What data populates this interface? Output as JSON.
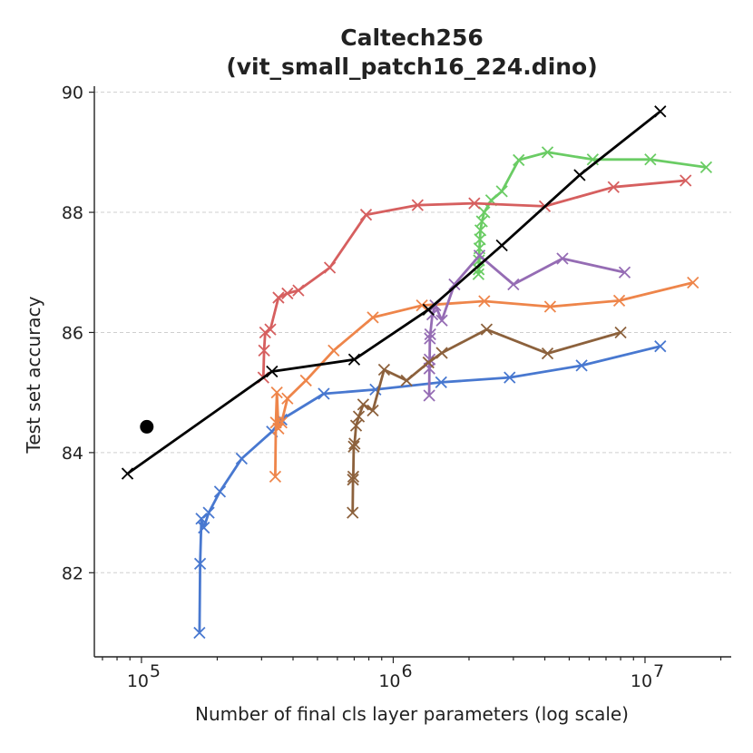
{
  "chart_data": {
    "type": "line",
    "title_lines": [
      "Caltech256",
      "(vit_small_patch16_224.dino)"
    ],
    "xlabel": "Number of final cls layer parameters (log scale)",
    "ylabel": "Test set accuracy",
    "xscale": "log",
    "xlim": [
      65000,
      22000000
    ],
    "ylim": [
      80.6,
      90.1
    ],
    "yticks": [
      82,
      84,
      86,
      88,
      90
    ],
    "ytick_labels": [
      "82",
      "84",
      "86",
      "88",
      "90"
    ],
    "xticks": [
      100000,
      1000000,
      10000000
    ],
    "xtick_labels": [
      {
        "base": "10",
        "exp": "5"
      },
      {
        "base": "10",
        "exp": "6"
      },
      {
        "base": "10",
        "exp": "7"
      }
    ],
    "grid": "y-dashed",
    "series": [
      {
        "name": "blue",
        "color": "#4878d0",
        "points": [
          [
            170000,
            81.0
          ],
          [
            171000,
            82.15
          ],
          [
            173000,
            82.9
          ],
          [
            177000,
            82.75
          ],
          [
            185000,
            83.0
          ],
          [
            205000,
            83.35
          ],
          [
            250000,
            83.9
          ],
          [
            330000,
            84.35
          ],
          [
            360000,
            84.55
          ],
          [
            530000,
            84.98
          ],
          [
            850000,
            85.05
          ],
          [
            1550000,
            85.17
          ],
          [
            2900000,
            85.25
          ],
          [
            5600000,
            85.45
          ],
          [
            11500000,
            85.77
          ]
        ]
      },
      {
        "name": "orange",
        "color": "#ee854a",
        "points": [
          [
            340000,
            83.6
          ],
          [
            342000,
            84.5
          ],
          [
            345000,
            85.0
          ],
          [
            350000,
            84.4
          ],
          [
            360000,
            84.5
          ],
          [
            380000,
            84.9
          ],
          [
            450000,
            85.2
          ],
          [
            580000,
            85.7
          ],
          [
            830000,
            86.25
          ],
          [
            1300000,
            86.45
          ],
          [
            2300000,
            86.52
          ],
          [
            4200000,
            86.43
          ],
          [
            7900000,
            86.53
          ],
          [
            15500000,
            86.83
          ]
        ]
      },
      {
        "name": "green",
        "color": "#6acc64",
        "points": [
          [
            2180000,
            86.97
          ],
          [
            2185000,
            87.05
          ],
          [
            2190000,
            87.2
          ],
          [
            2200000,
            87.4
          ],
          [
            2210000,
            87.55
          ],
          [
            2220000,
            87.7
          ],
          [
            2250000,
            87.85
          ],
          [
            2300000,
            88.0
          ],
          [
            2450000,
            88.2
          ],
          [
            2700000,
            88.35
          ],
          [
            3150000,
            88.87
          ],
          [
            4100000,
            89.0
          ],
          [
            6200000,
            88.88
          ],
          [
            10500000,
            88.88
          ],
          [
            17500000,
            88.75
          ]
        ]
      },
      {
        "name": "red",
        "color": "#d65f5f",
        "points": [
          [
            305000,
            85.25
          ],
          [
            307000,
            85.7
          ],
          [
            310000,
            86.0
          ],
          [
            325000,
            86.05
          ],
          [
            350000,
            86.58
          ],
          [
            380000,
            86.65
          ],
          [
            420000,
            86.7
          ],
          [
            560000,
            87.08
          ],
          [
            780000,
            87.96
          ],
          [
            1250000,
            88.12
          ],
          [
            2100000,
            88.15
          ],
          [
            4000000,
            88.1
          ],
          [
            7500000,
            88.42
          ],
          [
            14500000,
            88.53
          ]
        ]
      },
      {
        "name": "purple",
        "color": "#956cb4",
        "points": [
          [
            1390000,
            84.95
          ],
          [
            1392000,
            85.4
          ],
          [
            1395000,
            85.55
          ],
          [
            1398000,
            85.9
          ],
          [
            1403000,
            85.97
          ],
          [
            1430000,
            86.3
          ],
          [
            1470000,
            86.45
          ],
          [
            1560000,
            86.2
          ],
          [
            1750000,
            86.8
          ],
          [
            2200000,
            87.28
          ],
          [
            3000000,
            86.8
          ],
          [
            4700000,
            87.23
          ],
          [
            8300000,
            87.0
          ]
        ]
      },
      {
        "name": "brown",
        "color": "#8c613c",
        "points": [
          [
            690000,
            83.0
          ],
          [
            692000,
            83.55
          ],
          [
            694000,
            83.6
          ],
          [
            697000,
            84.1
          ],
          [
            702000,
            84.15
          ],
          [
            712000,
            84.45
          ],
          [
            730000,
            84.6
          ],
          [
            760000,
            84.8
          ],
          [
            830000,
            84.7
          ],
          [
            920000,
            85.38
          ],
          [
            1130000,
            85.2
          ],
          [
            1380000,
            85.5
          ],
          [
            1560000,
            85.66
          ],
          [
            2350000,
            86.05
          ],
          [
            4100000,
            85.65
          ],
          [
            8000000,
            86.0
          ]
        ]
      },
      {
        "name": "black",
        "color": "#000000",
        "points": [
          [
            88000,
            83.65
          ],
          [
            330000,
            85.35
          ],
          [
            700000,
            85.55
          ],
          [
            1380000,
            86.38
          ],
          [
            2700000,
            87.45
          ],
          [
            5500000,
            88.62
          ],
          [
            11500000,
            89.68
          ]
        ]
      }
    ],
    "reference_point": {
      "x": 105000,
      "y": 84.43,
      "color": "#000000"
    }
  }
}
